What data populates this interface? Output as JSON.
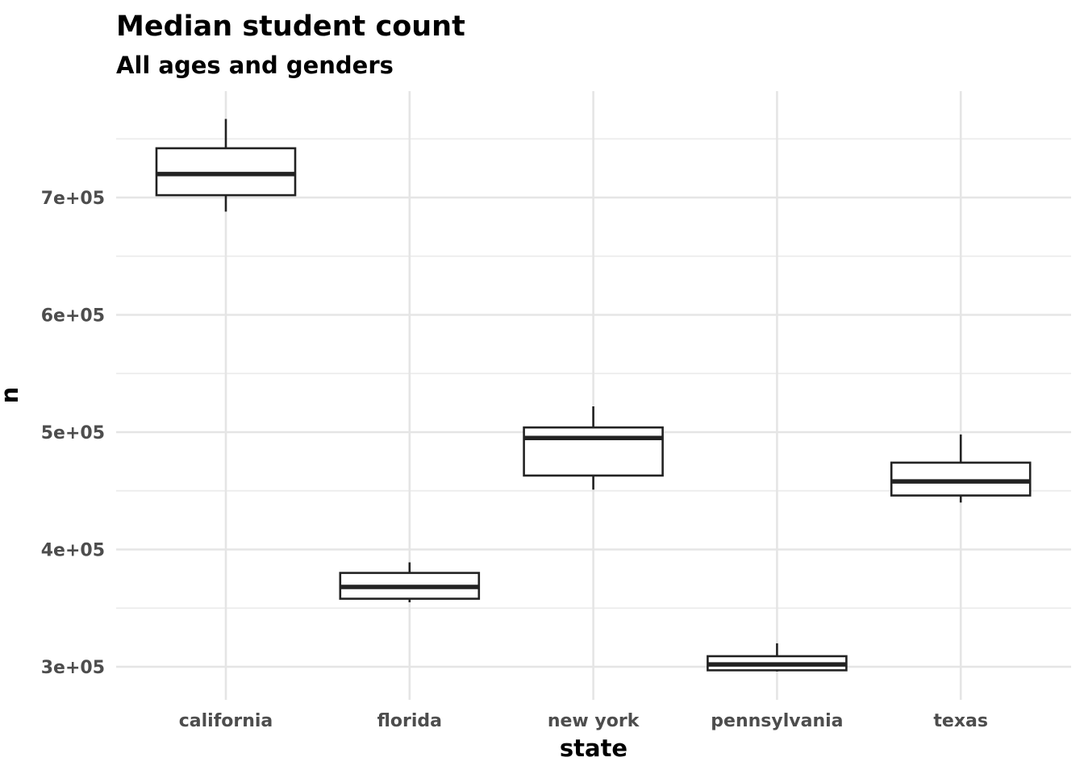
{
  "chart_data": {
    "type": "box",
    "title": "Median student count",
    "subtitle": "All ages and genders",
    "xlabel": "state",
    "ylabel": "n",
    "categories": [
      "california",
      "florida",
      "new york",
      "pennsylvania",
      "texas"
    ],
    "y_ticks": [
      300000,
      400000,
      500000,
      600000,
      700000
    ],
    "y_tick_labels": [
      "3e+05",
      "4e+05",
      "5e+05",
      "6e+05",
      "7e+05"
    ],
    "ylim": [
      272000,
      790000
    ],
    "grid": true,
    "boxes": [
      {
        "category": "california",
        "min": 688000,
        "q1": 702000,
        "median": 720000,
        "q3": 742000,
        "max": 767000
      },
      {
        "category": "florida",
        "min": 355000,
        "q1": 358000,
        "median": 368000,
        "q3": 380000,
        "max": 389000
      },
      {
        "category": "new york",
        "min": 451000,
        "q1": 463000,
        "median": 495000,
        "q3": 504000,
        "max": 522000
      },
      {
        "category": "pennsylvania",
        "min": 296000,
        "q1": 297000,
        "median": 302000,
        "q3": 309000,
        "max": 320000
      },
      {
        "category": "texas",
        "min": 440000,
        "q1": 446000,
        "median": 458000,
        "q3": 474000,
        "max": 498000
      }
    ]
  }
}
